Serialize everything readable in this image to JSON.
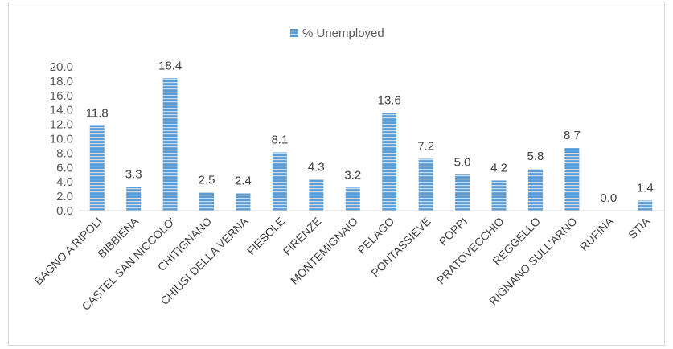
{
  "chart_data": {
    "type": "bar",
    "categories": [
      "BAGNO A RIPOLI",
      "BIBBIENA",
      "CASTEL SAN NICCOLO'",
      "CHITIGNANO",
      "CHIUSI DELLA VERNA",
      "FIESOLE",
      "FIRENZE",
      "MONTEMIGNAIO",
      "PELAGO",
      "PONTASSIEVE",
      "POPPI",
      "PRATOVECCHIO",
      "REGGELLO",
      "RIGNANO SULL'ARNO",
      "RUFINA",
      "STIA"
    ],
    "series": [
      {
        "name": "% Unemployed",
        "values": [
          11.8,
          3.3,
          18.4,
          2.5,
          2.4,
          8.1,
          4.3,
          3.2,
          13.6,
          7.2,
          5.0,
          4.2,
          5.8,
          8.7,
          0.0,
          1.4
        ]
      }
    ],
    "data_labels": [
      "11.8",
      "3.3",
      "18.4",
      "2.5",
      "2.4",
      "8.1",
      "4.3",
      "3.2",
      "13.6",
      "7.2",
      "5.0",
      "4.2",
      "5.8",
      "8.7",
      "0.0",
      "1.4"
    ],
    "yticks": [
      "0.0",
      "2.0",
      "4.0",
      "6.0",
      "8.0",
      "10.0",
      "12.0",
      "14.0",
      "16.0",
      "18.0",
      "20.0"
    ],
    "ylim": [
      0,
      20
    ],
    "title": "",
    "xlabel": "",
    "ylabel": "",
    "legend_position": "top-center",
    "grid": false,
    "bar_color": "#5b9bd5"
  }
}
